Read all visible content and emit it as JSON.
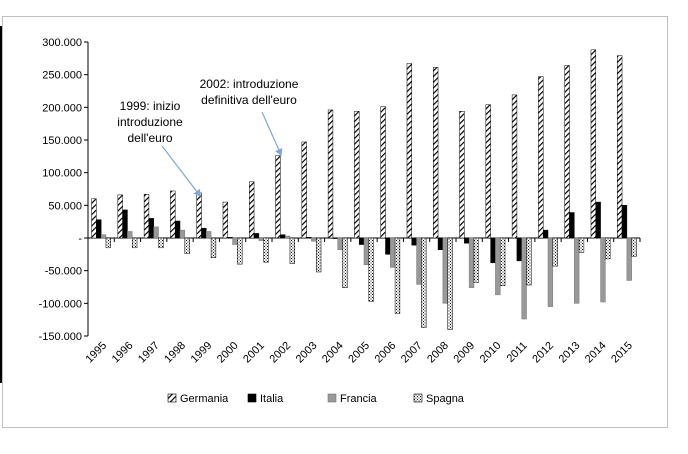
{
  "chart_data": {
    "type": "bar",
    "categories": [
      "1995",
      "1996",
      "1997",
      "1998",
      "1999",
      "2000",
      "2001",
      "2002",
      "2003",
      "2004",
      "2005",
      "2006",
      "2007",
      "2008",
      "2009",
      "2010",
      "2011",
      "2012",
      "2013",
      "2014",
      "2015"
    ],
    "series": [
      {
        "name": "Germania",
        "pattern": "diagonal-hatch",
        "values": [
          60000,
          66000,
          67000,
          72000,
          69000,
          55000,
          86000,
          126000,
          147000,
          196000,
          194000,
          201000,
          267000,
          261000,
          194000,
          204000,
          219000,
          247000,
          264000,
          288000,
          279000
        ]
      },
      {
        "name": "Italia",
        "pattern": "solid-black",
        "values": [
          28000,
          43000,
          30000,
          26000,
          15000,
          1000,
          7000,
          5000,
          1000,
          0,
          -10000,
          -25000,
          -11000,
          -18000,
          -8000,
          -38000,
          -35000,
          12000,
          39000,
          55000,
          50000
        ]
      },
      {
        "name": "Francia",
        "pattern": "solid-gray",
        "values": [
          5000,
          10000,
          17000,
          12000,
          10000,
          -10000,
          -4000,
          3000,
          -5000,
          -18000,
          -41000,
          -45000,
          -71000,
          -100000,
          -76000,
          -87000,
          -124000,
          -105000,
          -100000,
          -98000,
          -65000
        ]
      },
      {
        "name": "Spagna",
        "pattern": "dotted",
        "values": [
          -15000,
          -15000,
          -15000,
          -24000,
          -30000,
          -40000,
          -37000,
          -39000,
          -52000,
          -76000,
          -97000,
          -116000,
          -137000,
          -140000,
          -68000,
          -73000,
          -72000,
          -43000,
          -22000,
          -32000,
          -28000
        ]
      }
    ],
    "y_ticks": [
      "300.000",
      "250.000",
      "200.000",
      "150.000",
      "100.000",
      "50.000",
      "-",
      "-50.000",
      "-100.000",
      "-150.000"
    ],
    "ylim": [
      -150000,
      300000
    ],
    "grid": false,
    "legend_position": "bottom",
    "annotations": [
      {
        "lines": [
          "1999: inizio",
          "introduzione",
          "dell'euro"
        ],
        "target_category": "1999"
      },
      {
        "lines": [
          "2002: introduzione",
          "definitiva dell'euro"
        ],
        "target_category": "2002"
      }
    ],
    "colors": {
      "axis": "#000000",
      "arrow": "#7fa8d6",
      "gray": "#999999"
    }
  }
}
